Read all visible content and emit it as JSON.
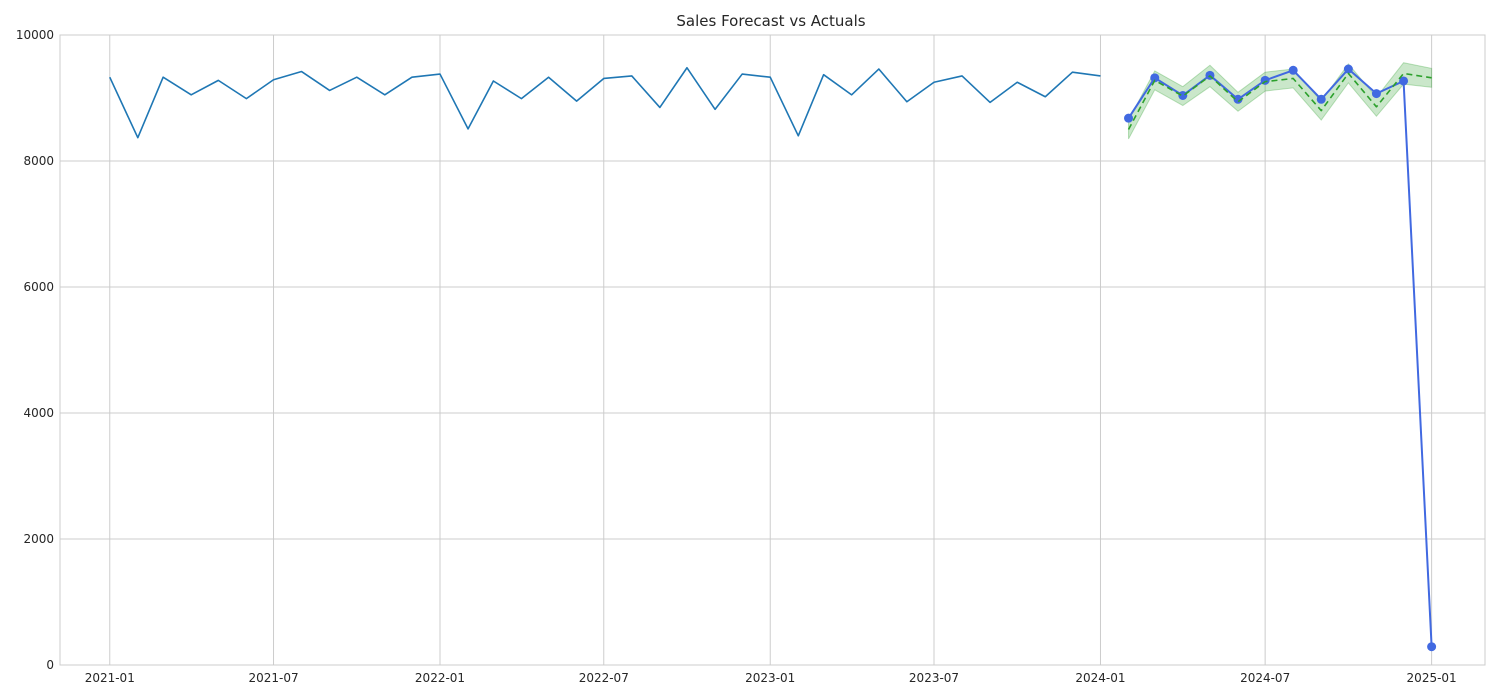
{
  "chart_data": {
    "type": "line",
    "title": "Sales Forecast vs Actuals",
    "xlabel": "",
    "ylabel": "",
    "ylim": [
      0,
      10000
    ],
    "xlim": [
      "2020-11-07",
      "2025-03-01"
    ],
    "grid": true,
    "x_ticks": [
      "2021-01",
      "2021-07",
      "2022-01",
      "2022-07",
      "2023-01",
      "2023-07",
      "2024-01",
      "2024-07",
      "2025-01"
    ],
    "y_ticks": [
      0,
      2000,
      4000,
      6000,
      8000,
      10000
    ],
    "series": [
      {
        "style": "solid",
        "color": "#1f77b4",
        "x": [
          "2021-01",
          "2021-02",
          "2021-03",
          "2021-04",
          "2021-05",
          "2021-06",
          "2021-07",
          "2021-08",
          "2021-09",
          "2021-10",
          "2021-11",
          "2021-12",
          "2022-01",
          "2022-02",
          "2022-03",
          "2022-04",
          "2022-05",
          "2022-06",
          "2022-07",
          "2022-08",
          "2022-09",
          "2022-10",
          "2022-11",
          "2022-12",
          "2023-01",
          "2023-02",
          "2023-03",
          "2023-04",
          "2023-05",
          "2023-06",
          "2023-07",
          "2023-08",
          "2023-09",
          "2023-10",
          "2023-11",
          "2023-12",
          "2024-01"
        ],
        "values": [
          9330,
          8370,
          9330,
          9050,
          9280,
          8990,
          9290,
          9420,
          9120,
          9330,
          9050,
          9330,
          9380,
          8510,
          9270,
          8990,
          9330,
          8950,
          9310,
          9350,
          8850,
          9480,
          8820,
          9380,
          9330,
          8400,
          9370,
          9050,
          9460,
          8940,
          9250,
          9350,
          8930,
          9250,
          9020,
          9410,
          9350
        ]
      },
      {
        "style": "solid-markers",
        "color": "#4169e1",
        "x": [
          "2024-02",
          "2024-03",
          "2024-04",
          "2024-05",
          "2024-06",
          "2024-07",
          "2024-08",
          "2024-09",
          "2024-10",
          "2024-11",
          "2024-12",
          "2025-01"
        ],
        "values": [
          8680,
          9320,
          9040,
          9360,
          8980,
          9280,
          9440,
          8980,
          9460,
          9070,
          9270,
          290
        ]
      },
      {
        "style": "dashed",
        "color": "#2ca02c",
        "x": [
          "2024-02",
          "2024-03",
          "2024-04",
          "2024-05",
          "2024-06",
          "2024-07",
          "2024-08",
          "2024-09",
          "2024-10",
          "2024-11",
          "2024-12",
          "2025-01"
        ],
        "values": [
          8500,
          9280,
          9030,
          9350,
          8940,
          9260,
          9310,
          8800,
          9390,
          8860,
          9390,
          9320
        ],
        "band_lower": [
          8350,
          9130,
          8880,
          9180,
          8790,
          9110,
          9160,
          8650,
          9240,
          8710,
          9220,
          9170
        ],
        "band_upper": [
          8650,
          9430,
          9180,
          9520,
          9090,
          9410,
          9460,
          8950,
          9540,
          9010,
          9560,
          9470
        ],
        "band_color": "#2ca02c"
      }
    ]
  }
}
